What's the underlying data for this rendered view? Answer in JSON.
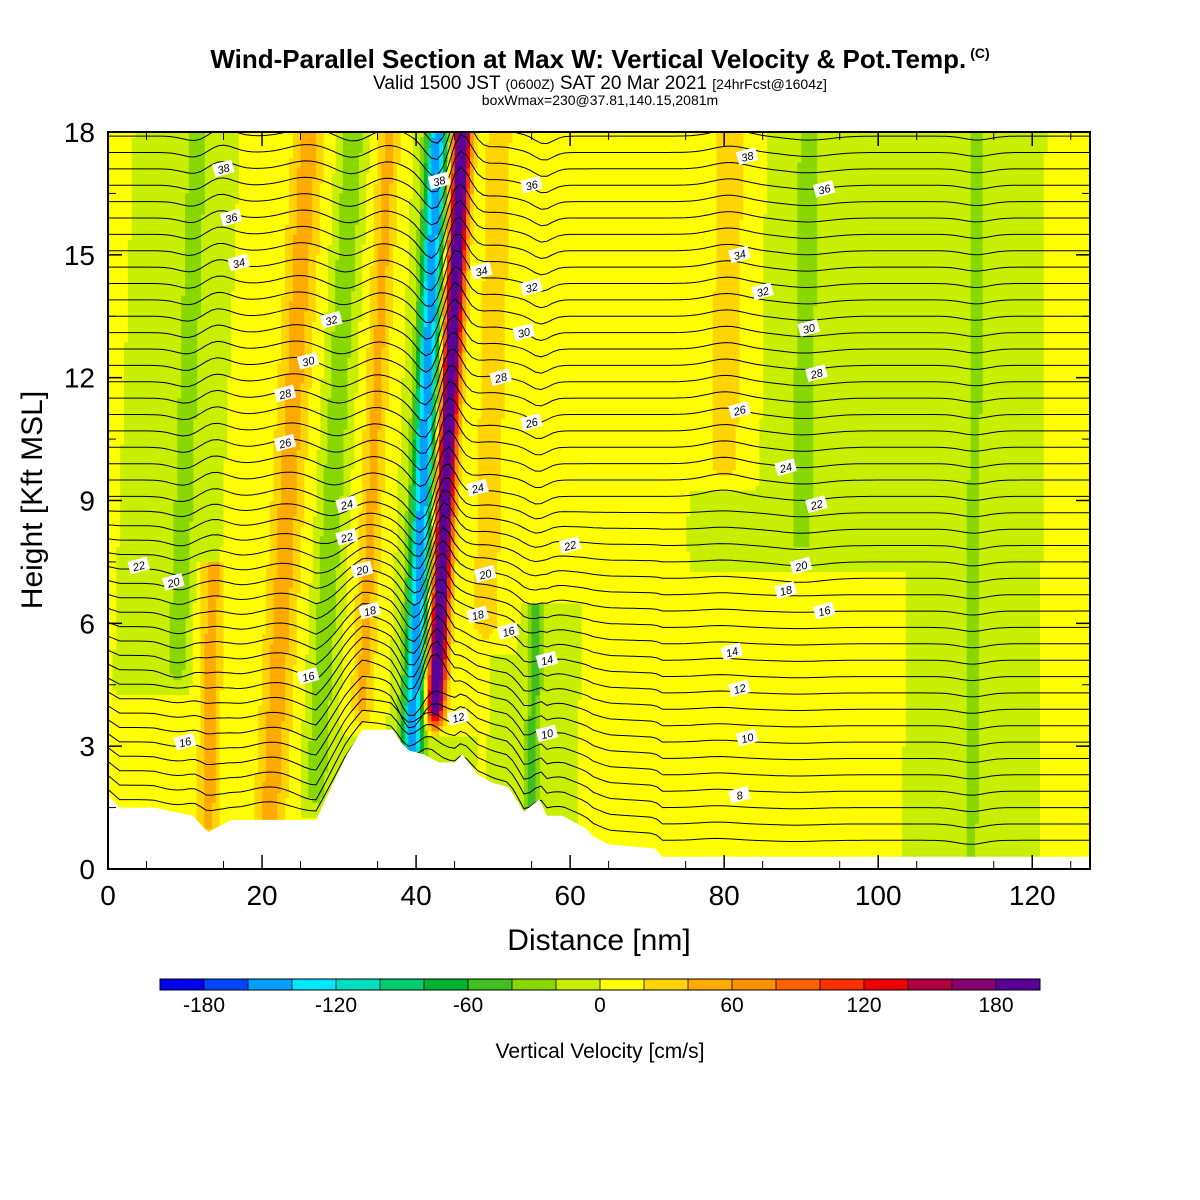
{
  "header": {
    "title": "Wind-Parallel Section at Max W: Vertical Velocity & Pot.Temp.",
    "copyright": "(C)",
    "valid_main": "Valid 1500 JST",
    "valid_z": "(0600Z)",
    "valid_date": "SAT 20 Mar 2021",
    "forecast": "[24hrFcst@1604z]",
    "boxwmax": "boxWmax=230@37.81,140.15,2081m"
  },
  "colors": {
    "plot_bg": "#c8ee00",
    "terrain": "#ffffff"
  },
  "chart_data": {
    "type": "heatmap",
    "xlabel": "Distance [nm]",
    "ylabel": "Height [Kft MSL]",
    "xlim": [
      0,
      127.5
    ],
    "ylim": [
      0,
      18
    ],
    "x_ticks": [
      0,
      20,
      40,
      60,
      80,
      100,
      120
    ],
    "y_ticks": [
      0,
      3,
      6,
      9,
      12,
      15,
      18
    ],
    "terrain_height_kft": [
      [
        0,
        1.8
      ],
      [
        1.5,
        1.5
      ],
      [
        6,
        1.5
      ],
      [
        11,
        1.3
      ],
      [
        13,
        0.9
      ],
      [
        16,
        1.2
      ],
      [
        19,
        1.2
      ],
      [
        27,
        1.2
      ],
      [
        28,
        1.6
      ],
      [
        29,
        2.0
      ],
      [
        30,
        2.4
      ],
      [
        31,
        2.8
      ],
      [
        32,
        3.1
      ],
      [
        33,
        3.4
      ],
      [
        37,
        3.4
      ],
      [
        38,
        3.1
      ],
      [
        39,
        2.9
      ],
      [
        41,
        2.8
      ],
      [
        43,
        2.6
      ],
      [
        45,
        2.6
      ],
      [
        46,
        2.8
      ],
      [
        48,
        2.3
      ],
      [
        50,
        2.1
      ],
      [
        52,
        2.0
      ],
      [
        53,
        1.7
      ],
      [
        54,
        1.4
      ],
      [
        56,
        1.7
      ],
      [
        57,
        1.3
      ],
      [
        59,
        1.3
      ],
      [
        60,
        1.2
      ],
      [
        62,
        1.0
      ],
      [
        63,
        0.8
      ],
      [
        65,
        0.6
      ],
      [
        71,
        0.5
      ],
      [
        72,
        0.3
      ],
      [
        127.5,
        0.3
      ]
    ],
    "vertical_velocity_features": [
      {
        "x": 42.5,
        "y_min": 4.0,
        "y_max": 18,
        "value": 230,
        "half_width": 1.2,
        "tilt": 0.25
      },
      {
        "x": 39.5,
        "y_min": 3.0,
        "y_max": 18,
        "value": -160,
        "half_width": 1.4,
        "tilt": 0.22
      },
      {
        "x": 21,
        "y_min": 1.2,
        "y_max": 18,
        "value": 50,
        "half_width": 2.2,
        "tilt": 0.3
      },
      {
        "x": 13,
        "y_min": 1.2,
        "y_max": 7,
        "value": 50,
        "half_width": 1.5,
        "tilt": 0.1
      },
      {
        "x": 33,
        "y_min": 4.0,
        "y_max": 18,
        "value": 45,
        "half_width": 1.6,
        "tilt": 0.25
      },
      {
        "x": 27,
        "y_min": 2.0,
        "y_max": 18,
        "value": -35,
        "half_width": 1.5,
        "tilt": 0.3
      },
      {
        "x": 9,
        "y_min": 5.0,
        "y_max": 18,
        "value": -35,
        "half_width": 1.4,
        "tilt": 0.2
      },
      {
        "x": 49,
        "y_min": 6.0,
        "y_max": 18,
        "value": 35,
        "half_width": 2.0,
        "tilt": 0.15
      },
      {
        "x": 55,
        "y_min": 1.5,
        "y_max": 6,
        "value": -50,
        "half_width": 1.0,
        "tilt": 0.1
      },
      {
        "x": 80,
        "y_min": 10.0,
        "y_max": 18,
        "value": 40,
        "half_width": 2.0,
        "tilt": 0.1
      },
      {
        "x": 90,
        "y_min": 8.0,
        "y_max": 18,
        "value": -25,
        "half_width": 2.5,
        "tilt": 0.1
      },
      {
        "x": 112,
        "y_min": 0.3,
        "y_max": 18,
        "value": -25,
        "half_width": 1.5,
        "tilt": 0.05
      }
    ],
    "theta_contour_labels": [
      {
        "text": "38",
        "x": 15,
        "y": 17.1
      },
      {
        "text": "36",
        "x": 16,
        "y": 15.9
      },
      {
        "text": "34",
        "x": 17,
        "y": 14.8
      },
      {
        "text": "32",
        "x": 29,
        "y": 13.4
      },
      {
        "text": "30",
        "x": 26,
        "y": 12.4
      },
      {
        "text": "28",
        "x": 23,
        "y": 11.6
      },
      {
        "text": "26",
        "x": 23,
        "y": 10.4
      },
      {
        "text": "24",
        "x": 31,
        "y": 8.9
      },
      {
        "text": "22",
        "x": 31,
        "y": 8.1
      },
      {
        "text": "20",
        "x": 33,
        "y": 7.3
      },
      {
        "text": "18",
        "x": 34,
        "y": 6.3
      },
      {
        "text": "16",
        "x": 26,
        "y": 4.7
      },
      {
        "text": "16",
        "x": 10,
        "y": 3.1
      },
      {
        "text": "22",
        "x": 4,
        "y": 7.4
      },
      {
        "text": "20",
        "x": 8.5,
        "y": 7.0
      },
      {
        "text": "38",
        "x": 43,
        "y": 16.8
      },
      {
        "text": "36",
        "x": 55,
        "y": 16.7
      },
      {
        "text": "34",
        "x": 48.5,
        "y": 14.6
      },
      {
        "text": "32",
        "x": 55,
        "y": 14.2
      },
      {
        "text": "30",
        "x": 54,
        "y": 13.1
      },
      {
        "text": "28",
        "x": 51,
        "y": 12.0
      },
      {
        "text": "26",
        "x": 55,
        "y": 10.9
      },
      {
        "text": "24",
        "x": 48,
        "y": 9.3
      },
      {
        "text": "22",
        "x": 60,
        "y": 7.9
      },
      {
        "text": "20",
        "x": 49,
        "y": 7.2
      },
      {
        "text": "18",
        "x": 48,
        "y": 6.2
      },
      {
        "text": "16",
        "x": 52,
        "y": 5.8
      },
      {
        "text": "14",
        "x": 57,
        "y": 5.1
      },
      {
        "text": "12",
        "x": 45.5,
        "y": 3.7
      },
      {
        "text": "10",
        "x": 57,
        "y": 3.3
      },
      {
        "text": "38",
        "x": 83,
        "y": 17.4
      },
      {
        "text": "36",
        "x": 93,
        "y": 16.6
      },
      {
        "text": "34",
        "x": 82,
        "y": 15.0
      },
      {
        "text": "32",
        "x": 85,
        "y": 14.1
      },
      {
        "text": "30",
        "x": 91,
        "y": 13.2
      },
      {
        "text": "28",
        "x": 92,
        "y": 12.1
      },
      {
        "text": "26",
        "x": 82,
        "y": 11.2
      },
      {
        "text": "24",
        "x": 88,
        "y": 9.8
      },
      {
        "text": "22",
        "x": 92,
        "y": 8.9
      },
      {
        "text": "20",
        "x": 90,
        "y": 7.4
      },
      {
        "text": "18",
        "x": 88,
        "y": 6.8
      },
      {
        "text": "16",
        "x": 93,
        "y": 6.3
      },
      {
        "text": "14",
        "x": 81,
        "y": 5.3
      },
      {
        "text": "12",
        "x": 82,
        "y": 4.4
      },
      {
        "text": "10",
        "x": 83,
        "y": 3.2
      },
      {
        "text": "8",
        "x": 82,
        "y": 1.8
      }
    ]
  },
  "colorbar": {
    "title": "Vertical Velocity [cm/s]",
    "tick_labels": [
      "-180",
      "-120",
      "-60",
      "0",
      "60",
      "120",
      "180"
    ],
    "tick_values": [
      -180,
      -120,
      -60,
      0,
      60,
      120,
      180
    ],
    "levels_min": -200,
    "level_step": 20,
    "colors": [
      "#0000ee",
      "#0044ff",
      "#00a0ff",
      "#00e8ff",
      "#00e0c0",
      "#00cc70",
      "#00b430",
      "#40c020",
      "#88d800",
      "#c8ee00",
      "#ffff00",
      "#ffd400",
      "#ffaa00",
      "#ff9000",
      "#ff6000",
      "#ff3000",
      "#ee0000",
      "#b00040",
      "#880070",
      "#5a0096"
    ]
  }
}
